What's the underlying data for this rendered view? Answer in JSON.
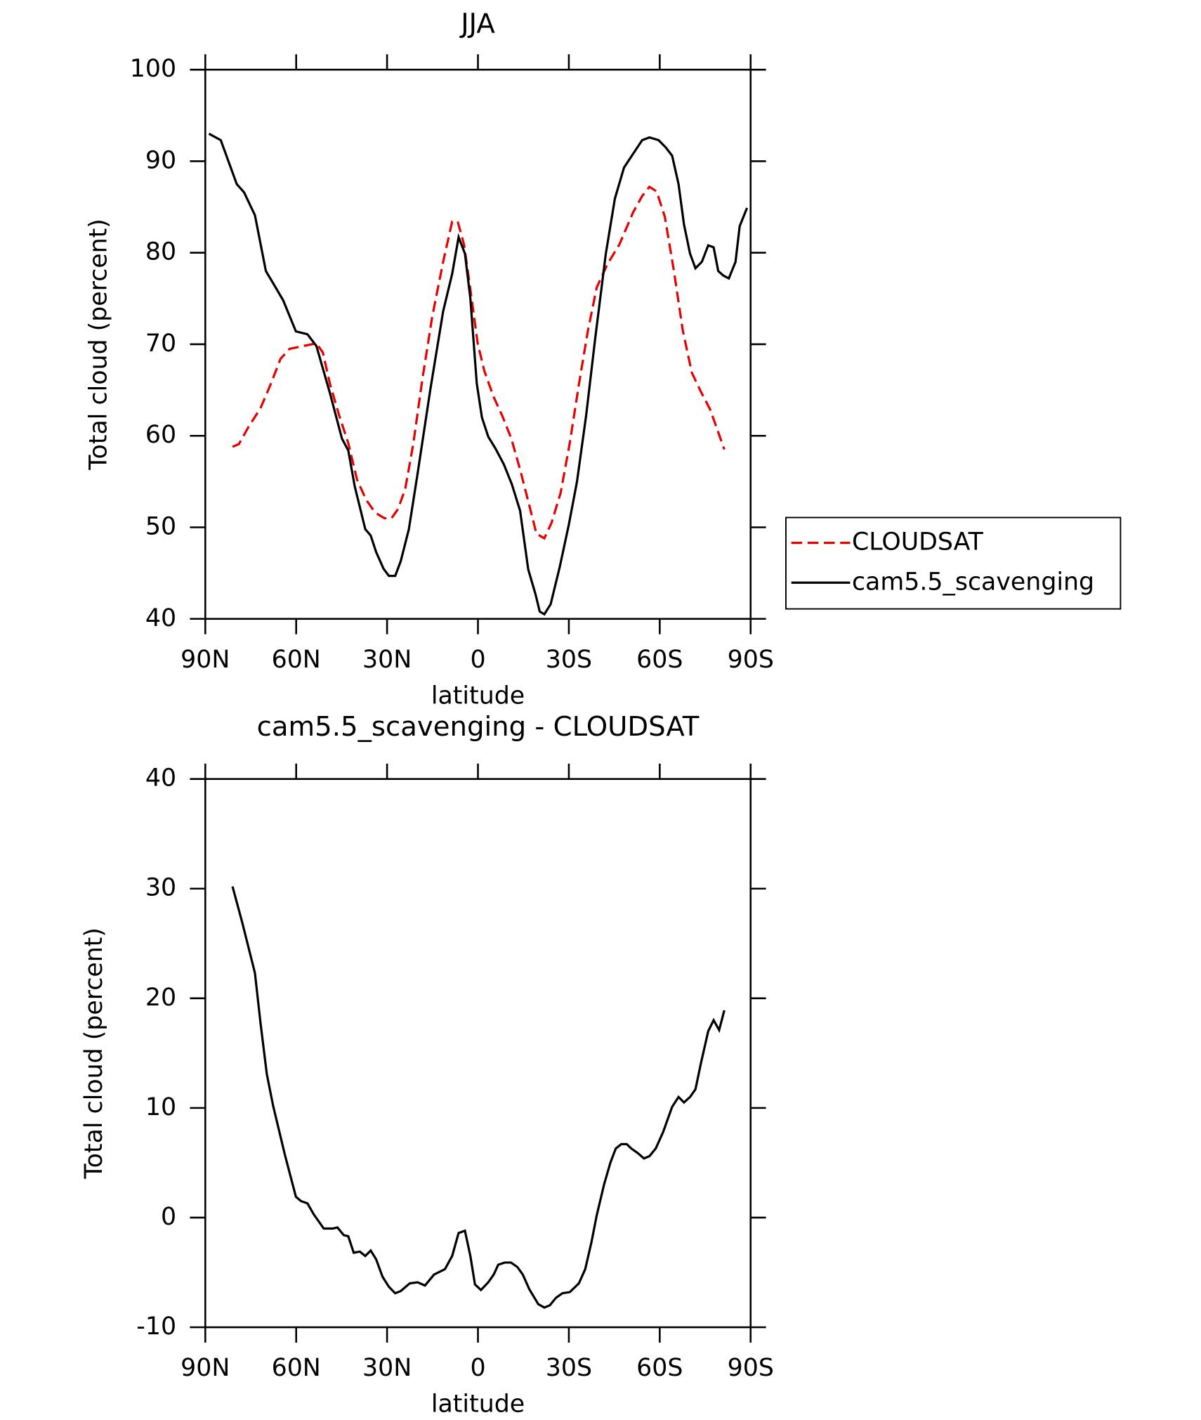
{
  "chart_data": [
    {
      "type": "line",
      "title": "JJA",
      "x_label": "latitude",
      "y_label": "Total cloud (percent)",
      "xlim": [
        90,
        -90
      ],
      "xticks": [
        {
          "value": 90,
          "label": "90N"
        },
        {
          "value": 60,
          "label": "60N"
        },
        {
          "value": 30,
          "label": "30N"
        },
        0,
        {
          "value": -30,
          "label": "30S"
        },
        {
          "value": -60,
          "label": "60S"
        },
        {
          "value": -90,
          "label": "90S"
        }
      ],
      "ylim": [
        40,
        100
      ],
      "yticks": [
        40,
        50,
        60,
        70,
        80,
        90,
        100
      ],
      "legend": "right",
      "series": [
        {
          "name": "CLOUDSAT",
          "color": "#e60000",
          "linestyle": "dashed",
          "x": [
            81,
            78.9,
            75.7,
            71.8,
            68.2,
            65.2,
            62.2,
            57.8,
            53.3,
            51.2,
            48.8,
            45.8,
            42.8,
            39.9,
            36.9,
            33.9,
            30.9,
            28.5,
            26.4,
            24,
            21.3,
            18.4,
            15.1,
            11.5,
            8.5,
            6.7,
            4.6,
            2.5,
            0.1,
            -2.1,
            -5.1,
            -8,
            -11,
            -14,
            -17,
            -19.3,
            -21.9,
            -24.3,
            -27.3,
            -30.3,
            -33.3,
            -36.3,
            -39.2,
            -42.8,
            -46.7,
            -51.2,
            -54.2,
            -56.6,
            -59,
            -61.7,
            -64.7,
            -67.6,
            -70.6,
            -73.6,
            -76.6,
            -79,
            -81.3
          ],
          "values": [
            58.8,
            59.1,
            61,
            63,
            65.8,
            68.4,
            69.5,
            69.8,
            70.1,
            69.1,
            65.6,
            62.2,
            59.2,
            55.2,
            53,
            51.6,
            51,
            51,
            52,
            54.2,
            59.2,
            66.1,
            73,
            79,
            83.4,
            83.4,
            80.9,
            76,
            70.1,
            67.1,
            64.3,
            62.2,
            59.7,
            56.2,
            52.3,
            49.3,
            48.8,
            50.5,
            53.8,
            59.2,
            65.6,
            71.5,
            76.2,
            78.8,
            80.9,
            84.4,
            86.2,
            87.2,
            86.7,
            83.9,
            78,
            71.5,
            66.9,
            64.8,
            62.9,
            60.7,
            58.5
          ]
        },
        {
          "name": "cam5.5_scavenging",
          "color": "#000000",
          "linestyle": "solid",
          "x": [
            88.8,
            84.9,
            79.6,
            77.2,
            73.6,
            70,
            67.3,
            64.3,
            60.1,
            56.3,
            53.3,
            48.8,
            44.9,
            42.8,
            40.7,
            37.2,
            35.4,
            33.6,
            31.2,
            29.4,
            27.3,
            25.5,
            22.8,
            19.9,
            15.7,
            11.5,
            8.5,
            6.4,
            4.3,
            2.5,
            0.4,
            -1.3,
            -3.4,
            -5.8,
            -8.5,
            -11.2,
            -13.9,
            -16.6,
            -19,
            -20.4,
            -21.9,
            -24,
            -27,
            -30,
            -32.7,
            -35.7,
            -38.7,
            -42.2,
            -45.2,
            -48.2,
            -51.2,
            -54.2,
            -56.6,
            -59.6,
            -62,
            -64.1,
            -66.2,
            -68,
            -70,
            -71.8,
            -73.9,
            -76,
            -77.8,
            -79.3,
            -81,
            -82.8,
            -85,
            -86.4,
            -88.8
          ],
          "values": [
            93,
            92.3,
            87.5,
            86.6,
            84.1,
            78,
            76.5,
            74.8,
            71.4,
            71.1,
            69.8,
            64.6,
            59.7,
            58.4,
            54.5,
            49.8,
            49.1,
            47.3,
            45.5,
            44.7,
            44.7,
            46.3,
            49.8,
            55.9,
            65.1,
            73.6,
            77.7,
            81.7,
            79.9,
            75,
            65.7,
            62,
            59.9,
            58.6,
            56.9,
            54.7,
            51.8,
            45.4,
            42.7,
            40.8,
            40.5,
            41.6,
            45.7,
            50.3,
            55,
            62.2,
            70.6,
            79.9,
            85.9,
            89.3,
            90.8,
            92.3,
            92.6,
            92.3,
            91.5,
            90.6,
            87.5,
            83.1,
            79.9,
            78.3,
            79,
            80.8,
            80.6,
            78,
            77.5,
            77.2,
            79,
            82.9,
            84.9
          ]
        }
      ]
    },
    {
      "type": "line",
      "title": "cam5.5_scavenging - CLOUDSAT",
      "x_label": "latitude",
      "y_label": "Total cloud (percent)",
      "xlim": [
        90,
        -90
      ],
      "xticks": [
        {
          "value": 90,
          "label": "90N"
        },
        {
          "value": 60,
          "label": "60N"
        },
        {
          "value": 30,
          "label": "30N"
        },
        0,
        {
          "value": -30,
          "label": "30S"
        },
        {
          "value": -60,
          "label": "60S"
        },
        {
          "value": -90,
          "label": "90S"
        }
      ],
      "ylim": [
        -10,
        40
      ],
      "yticks": [
        -10,
        0,
        10,
        20,
        30,
        40
      ],
      "series": [
        {
          "color": "#000000",
          "linestyle": "solid",
          "x": [
            81,
            77.8,
            73.6,
            71.8,
            69.7,
            67.6,
            63.7,
            60.1,
            58.4,
            56.3,
            54.2,
            50.9,
            47.9,
            46.4,
            44.3,
            42.8,
            41,
            39,
            37.2,
            35.4,
            33.6,
            31.5,
            29.4,
            27.3,
            25.5,
            22.5,
            19.9,
            17.5,
            14.5,
            10.9,
            8.5,
            6.4,
            4.3,
            2.5,
            1,
            -1,
            -3.4,
            -5.2,
            -6.7,
            -8.8,
            -10.9,
            -13,
            -14.8,
            -16.9,
            -19.9,
            -21.9,
            -23.7,
            -25.8,
            -27.9,
            -30.3,
            -33.3,
            -35.4,
            -37.5,
            -39.2,
            -41.6,
            -43.7,
            -45.5,
            -47.3,
            -49.1,
            -50.6,
            -52.7,
            -54.8,
            -56.6,
            -58.7,
            -61.1,
            -64.1,
            -66.2,
            -68,
            -70,
            -71.8,
            -73.6,
            -76,
            -77.8,
            -79.6,
            -81.3
          ],
          "values": [
            30.2,
            26.9,
            22.3,
            17.8,
            13.1,
            10.2,
            5.7,
            1.9,
            1.5,
            1.3,
            0.3,
            -1,
            -1,
            -0.9,
            -1.6,
            -1.7,
            -3.2,
            -3.1,
            -3.5,
            -3,
            -3.8,
            -5.4,
            -6.3,
            -6.9,
            -6.7,
            -6,
            -5.9,
            -6.2,
            -5.2,
            -4.7,
            -3.5,
            -1.4,
            -1.2,
            -3.5,
            -6.1,
            -6.6,
            -5.9,
            -5.2,
            -4.3,
            -4.1,
            -4.1,
            -4.5,
            -5.2,
            -6.5,
            -7.9,
            -8.2,
            -8,
            -7.3,
            -6.9,
            -6.8,
            -6,
            -4.7,
            -2.2,
            0.2,
            3,
            5,
            6.3,
            6.7,
            6.7,
            6.3,
            5.9,
            5.4,
            5.6,
            6.3,
            7.8,
            10.1,
            11,
            10.5,
            11,
            11.7,
            14.1,
            17,
            18,
            17.1,
            18.9
          ]
        }
      ]
    }
  ]
}
